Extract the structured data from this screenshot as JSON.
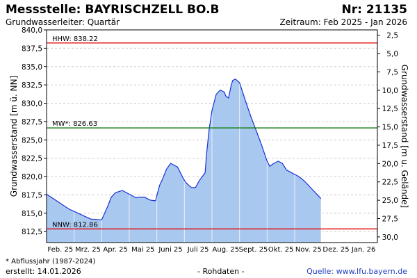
{
  "header": {
    "title": "Messstelle: BAYRISCHZELL BO.B",
    "nr": "Nr: 21135",
    "aquifer": "Grundwasserleiter: Quartär",
    "period": "Zeitraum: Feb 2025 - Jan 2026"
  },
  "footer": {
    "footnote": "* Abflussjahr (1987-2024)",
    "created": "erstellt:  14.01.2026",
    "rohdaten": "- Rohdaten -",
    "source": "Quelle: www.lfu.bayern.de"
  },
  "colors": {
    "fill": "#a8c8ef",
    "line": "#1a2fd6",
    "hhw": "#e01010",
    "nnw": "#e01010",
    "mw": "#108010",
    "grid": "#cccccc"
  },
  "chart_data": {
    "type": "area",
    "ylabel": "Grundwasserstand [m ü. NN]",
    "ylabel_right": "Grundwasserstand [m u. Gelände]",
    "ylim": [
      811,
      840
    ],
    "yticks": [
      "812,5",
      "815,0",
      "817,5",
      "820,0",
      "822,5",
      "825,0",
      "827,5",
      "830,0",
      "832,5",
      "835,0",
      "837,5",
      "840,0"
    ],
    "ytick_values": [
      812.5,
      815,
      817.5,
      820,
      822.5,
      825,
      827.5,
      830,
      832.5,
      835,
      837.5,
      840
    ],
    "ylim_right": [
      1.77,
      30.77
    ],
    "yticks_right": [
      "2,5",
      "5,0",
      "7,5",
      "10,0",
      "12,5",
      "15,0",
      "17,5",
      "20,0",
      "22,5",
      "25,0",
      "27,5",
      "30,0"
    ],
    "ytick_right_values": [
      2.5,
      5,
      7.5,
      10,
      12.5,
      15,
      17.5,
      20,
      22.5,
      25,
      27.5,
      30
    ],
    "xlim": [
      0,
      12
    ],
    "xticks": [
      "Feb. 25",
      "Mrz. 25",
      "Apr. 25",
      "Mai 25",
      "Juni 25",
      "Juli 25",
      "Aug. 25",
      "Sept. 25",
      "Okt. 25",
      "Nov. 25",
      "Dez. 25",
      "Jan. 26"
    ],
    "grid": true,
    "reference_lines": [
      {
        "key": "hhw",
        "label": "HHW: 838.22",
        "value": 838.22
      },
      {
        "key": "mw",
        "label": "MW*: 826.63",
        "value": 826.63
      },
      {
        "key": "nnw",
        "label": "NNW: 812.86",
        "value": 812.86
      }
    ],
    "series": [
      {
        "x": [
          0,
          0.4,
          0.8,
          1.2,
          1.6,
          2.0,
          2.2,
          2.35,
          2.5,
          2.75,
          3.0,
          3.25,
          3.35,
          3.55,
          3.75,
          3.95,
          4.1,
          4.2,
          4.35,
          4.5,
          4.75,
          4.95,
          5.05,
          5.25,
          5.4,
          5.55,
          5.75,
          5.8,
          5.9,
          6.0,
          6.15,
          6.3,
          6.45,
          6.5,
          6.6,
          6.7,
          6.75,
          6.85,
          7.0,
          7.2,
          7.4,
          7.6,
          7.8,
          8.0,
          8.1,
          8.2,
          8.4,
          8.55,
          8.7,
          8.85,
          9.0,
          9.15,
          9.35,
          9.65,
          9.95
        ],
        "y": [
          817.6,
          816.6,
          815.6,
          814.9,
          814.2,
          814.1,
          815.8,
          817.2,
          817.8,
          818.1,
          817.6,
          817.1,
          817.2,
          817.2,
          816.8,
          816.7,
          818.8,
          819.6,
          821.0,
          821.8,
          821.3,
          819.8,
          819.2,
          818.5,
          818.5,
          819.5,
          820.5,
          823.0,
          826.5,
          829.0,
          831.2,
          831.8,
          831.5,
          831.0,
          830.7,
          832.5,
          833.1,
          833.3,
          832.8,
          830.5,
          828.3,
          826.3,
          824.3,
          822.1,
          821.4,
          821.7,
          822.1,
          821.8,
          820.9,
          820.6,
          820.3,
          820.0,
          819.4,
          818.2,
          817.0
        ]
      }
    ]
  }
}
